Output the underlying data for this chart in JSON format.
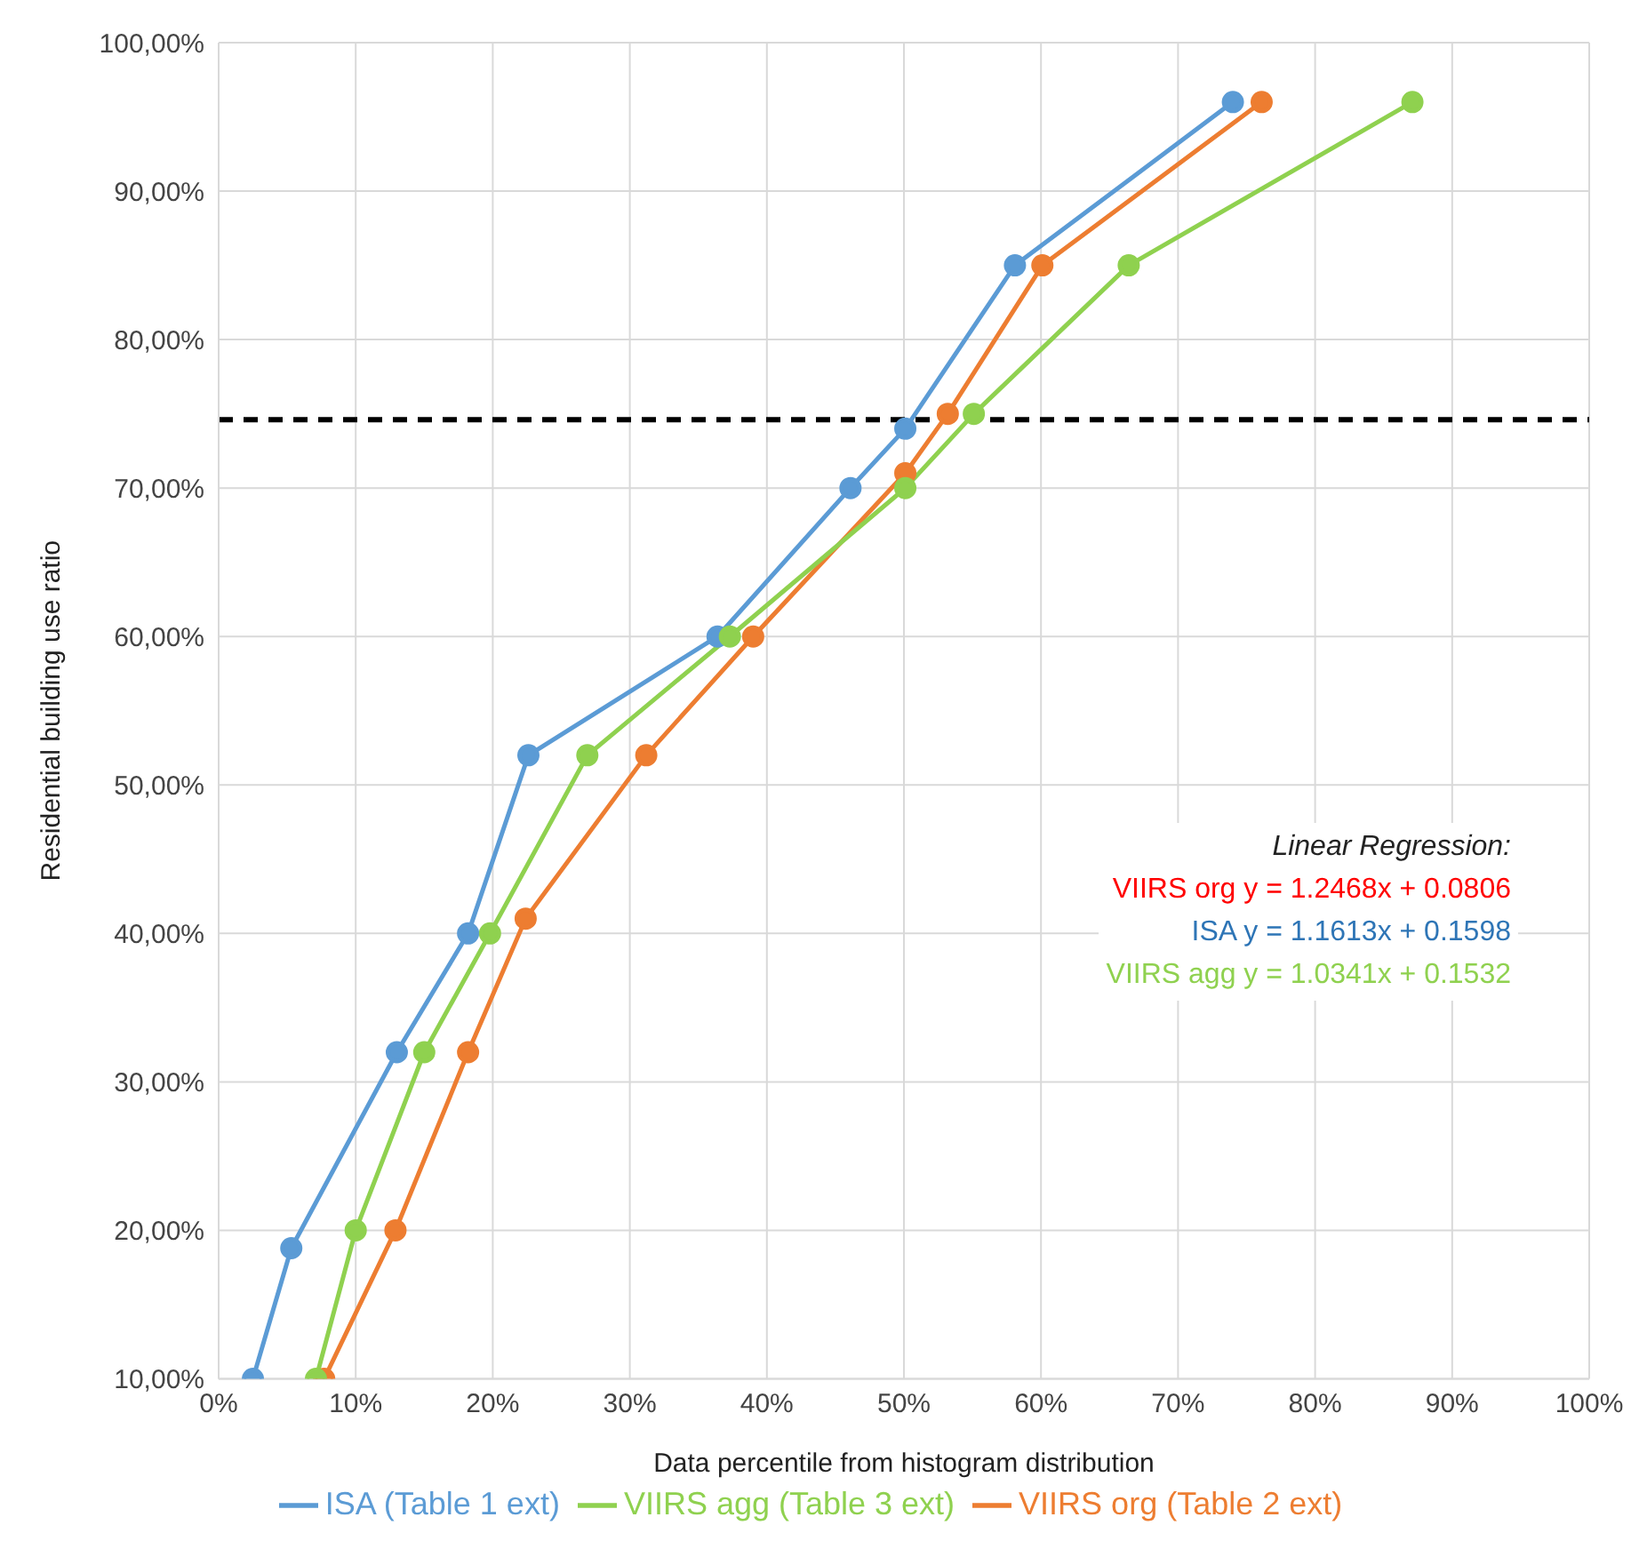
{
  "chart_data": {
    "type": "line",
    "xlabel": "Data percentile from histogram distribution",
    "ylabel": "Residential building use ratio",
    "xlim": [
      0,
      100
    ],
    "ylim": [
      10,
      100
    ],
    "xticks": [
      {
        "value": 0,
        "label": "0%"
      },
      {
        "value": 10,
        "label": "10%"
      },
      {
        "value": 20,
        "label": "20%"
      },
      {
        "value": 30,
        "label": "30%"
      },
      {
        "value": 40,
        "label": "40%"
      },
      {
        "value": 50,
        "label": "50%"
      },
      {
        "value": 60,
        "label": "60%"
      },
      {
        "value": 70,
        "label": "70%"
      },
      {
        "value": 80,
        "label": "80%"
      },
      {
        "value": 90,
        "label": "90%"
      },
      {
        "value": 100,
        "label": "100%"
      }
    ],
    "yticks": [
      {
        "value": 10,
        "label": "10,00%"
      },
      {
        "value": 20,
        "label": "20,00%"
      },
      {
        "value": 30,
        "label": "30,00%"
      },
      {
        "value": 40,
        "label": "40,00%"
      },
      {
        "value": 50,
        "label": "50,00%"
      },
      {
        "value": 60,
        "label": "60,00%"
      },
      {
        "value": 70,
        "label": "70,00%"
      },
      {
        "value": 80,
        "label": "80,00%"
      },
      {
        "value": 90,
        "label": "90,00%"
      },
      {
        "value": 100,
        "label": "100,00%"
      }
    ],
    "series": [
      {
        "name": "ISA (Table 1 ext)",
        "color": "#5b9bd5",
        "x": [
          2.5,
          5.3,
          13,
          18.2,
          22.6,
          36.4,
          46.1,
          50.1,
          58.1,
          74
        ],
        "values": [
          10,
          18.8,
          32,
          40,
          52,
          60,
          70,
          74,
          85,
          96
        ]
      },
      {
        "name": "VIIRS org (Table 2 ext)",
        "color": "#ed7d31",
        "x": [
          7.7,
          12.9,
          18.2,
          22.4,
          31.2,
          39,
          50.1,
          53.2,
          60.1,
          76.1
        ],
        "values": [
          10,
          20,
          32,
          41,
          52,
          60,
          71,
          75,
          85,
          96
        ]
      },
      {
        "name": "VIIRS agg (Table 3 ext)",
        "color": "#8fd14f",
        "x": [
          7.1,
          10,
          15,
          19.8,
          26.9,
          37.3,
          50.1,
          55.1,
          66.4,
          87.1
        ],
        "values": [
          10,
          20,
          32,
          40,
          52,
          60,
          70,
          75,
          85,
          96
        ]
      }
    ],
    "ref_lines": [
      {
        "axis": "y",
        "value": 74.6,
        "color": "#000000",
        "line_style": "dashed"
      }
    ],
    "annotations": [
      "Linear Regression:",
      "VIIRS org   y = 1.2468x  + 0.0806",
      "ISA   y = 1.1613x  + 0.1598",
      "VIIRS agg   y = 1.0341x  + 0.1532"
    ],
    "grid": true,
    "legend": "bottom",
    "marker": "circle",
    "line_style": "solid"
  }
}
